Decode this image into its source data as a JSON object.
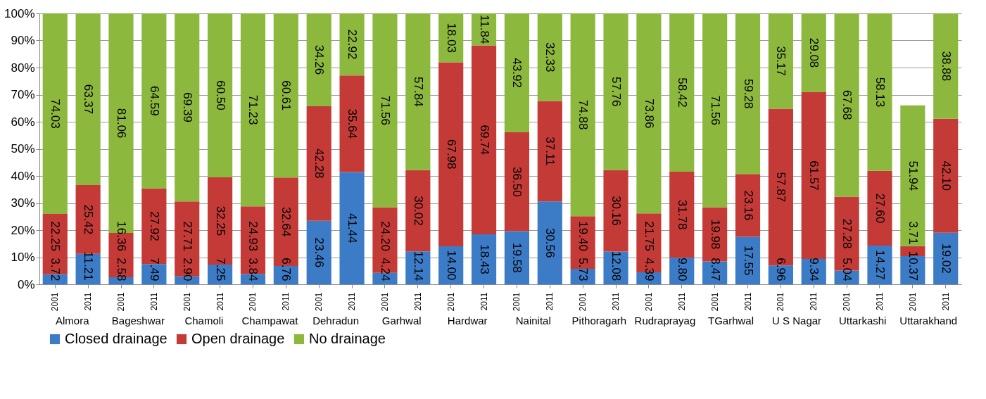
{
  "chart_data": {
    "type": "bar",
    "stacked": true,
    "categories": [
      "2001",
      "2011",
      "2001",
      "2011",
      "2001",
      "2011",
      "2001",
      "2011",
      "2001",
      "2011",
      "2001",
      "2011",
      "2001",
      "2011",
      "2001",
      "2011",
      "2001",
      "2011",
      "2001",
      "2011",
      "2001",
      "2011",
      "2001",
      "2011",
      "2001",
      "2011",
      "2001",
      "2011"
    ],
    "annotations": [
      "Almora",
      "Bageshwar",
      "Chamoli",
      "Champawat",
      "Dehradun",
      "Garhwal",
      "Hardwar",
      "Nainital",
      "Pithoragarh",
      "Rudraprayag",
      "TGarhwal",
      "U S  Nagar",
      "Uttarkashi",
      "Uttarakhand"
    ],
    "series": [
      {
        "name": "Closed drainage",
        "color": "#3c7bc6",
        "values": [
          3.72,
          11.21,
          2.58,
          7.49,
          2.9,
          7.25,
          3.84,
          6.76,
          23.46,
          41.44,
          4.24,
          12.14,
          14.0,
          18.43,
          19.58,
          30.56,
          5.73,
          12.08,
          4.39,
          9.8,
          8.47,
          17.55,
          6.96,
          9.34,
          5.04,
          14.27,
          10.37,
          19.02
        ],
        "value_labels": [
          "3.72",
          "11.21",
          "2.58",
          "7.49",
          "2.90",
          "7.25",
          "3.84",
          "6.76",
          "23.46",
          "41.44",
          "4.24",
          "12.14",
          "14.00",
          "18.43",
          "19.58",
          "30.56",
          "5.73",
          "12.08",
          "4.39",
          "9.80",
          "8.47",
          "17.55",
          "6.96",
          "9.34",
          "5.04",
          "14.27",
          "10.37",
          "19.02"
        ]
      },
      {
        "name": "Open drainage",
        "color": "#c43a37",
        "values": [
          22.25,
          25.42,
          16.36,
          27.92,
          27.71,
          32.25,
          24.93,
          32.64,
          42.28,
          35.64,
          24.2,
          30.02,
          67.98,
          69.74,
          36.5,
          37.11,
          19.4,
          30.16,
          21.75,
          31.78,
          19.98,
          23.16,
          57.87,
          61.57,
          27.28,
          27.6,
          3.71,
          42.1
        ],
        "value_labels": [
          "22.25",
          "25.42",
          "16.36",
          "27.92",
          "27.71",
          "32.25",
          "24.93",
          "32.64",
          "42.28",
          "35.64",
          "24.20",
          "30.02",
          "67.98",
          "69.74",
          "36.50",
          "37.11",
          "19.40",
          "30.16",
          "21.75",
          "31.78",
          "19.98",
          "23.16",
          "57.87",
          "61.57",
          "27.28",
          "27.60",
          "3.71",
          "42.10"
        ]
      },
      {
        "name": "No drainage",
        "color": "#8db83e",
        "values": [
          74.03,
          63.37,
          81.06,
          64.59,
          69.39,
          60.5,
          71.23,
          60.61,
          34.26,
          22.92,
          71.56,
          57.84,
          18.03,
          11.84,
          43.92,
          32.33,
          74.88,
          57.76,
          73.86,
          58.42,
          71.56,
          59.28,
          35.17,
          29.08,
          67.68,
          58.13,
          51.94,
          38.88
        ],
        "value_labels": [
          "74.03",
          "63.37",
          "81.06",
          "64.59",
          "69.39",
          "60.50",
          "71.23",
          "60.61",
          "34.26",
          "22.92",
          "71.56",
          "57.84",
          "18.03",
          "11.84",
          "43.92",
          "32.33",
          "74.88",
          "57.76",
          "73.86",
          "58.42",
          "71.56",
          "59.28",
          "35.17",
          "29.08",
          "67.68",
          "58.13",
          "51.94",
          "38.88"
        ]
      }
    ],
    "ylim": [
      0,
      100
    ],
    "yticks": [
      {
        "value": 0,
        "label": "0%"
      },
      {
        "value": 10,
        "label": "10%"
      },
      {
        "value": 20,
        "label": "20%"
      },
      {
        "value": 30,
        "label": "30%"
      },
      {
        "value": 40,
        "label": "40%"
      },
      {
        "value": 50,
        "label": "50%"
      },
      {
        "value": 60,
        "label": "60%"
      },
      {
        "value": 70,
        "label": "70%"
      },
      {
        "value": 80,
        "label": "80%"
      },
      {
        "value": 90,
        "label": "90%"
      },
      {
        "value": 100,
        "label": "100%"
      }
    ],
    "grid": "y",
    "legend": "bottom"
  }
}
